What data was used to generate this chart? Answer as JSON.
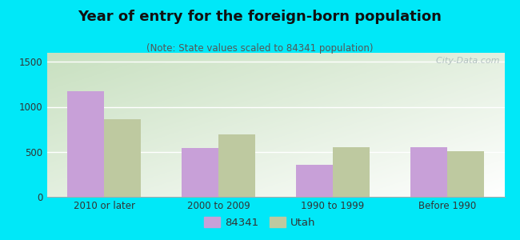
{
  "title": "Year of entry for the foreign-born population",
  "subtitle": "(Note: State values scaled to 84341 population)",
  "categories": [
    "2010 or later",
    "2000 to 2009",
    "1990 to 1999",
    "Before 1990"
  ],
  "values_84341": [
    1170,
    545,
    360,
    550
  ],
  "values_utah": [
    860,
    690,
    550,
    510
  ],
  "bar_color_84341": "#c8a0d8",
  "bar_color_utah": "#bec9a0",
  "background_color": "#00e8f8",
  "ylim": [
    0,
    1600
  ],
  "yticks": [
    0,
    500,
    1000,
    1500
  ],
  "legend_label_84341": "84341",
  "legend_label_utah": "Utah",
  "bar_width": 0.32,
  "title_fontsize": 13,
  "subtitle_fontsize": 8.5,
  "tick_fontsize": 8.5,
  "legend_fontsize": 9.5,
  "watermark_text": "  City-Data.com"
}
